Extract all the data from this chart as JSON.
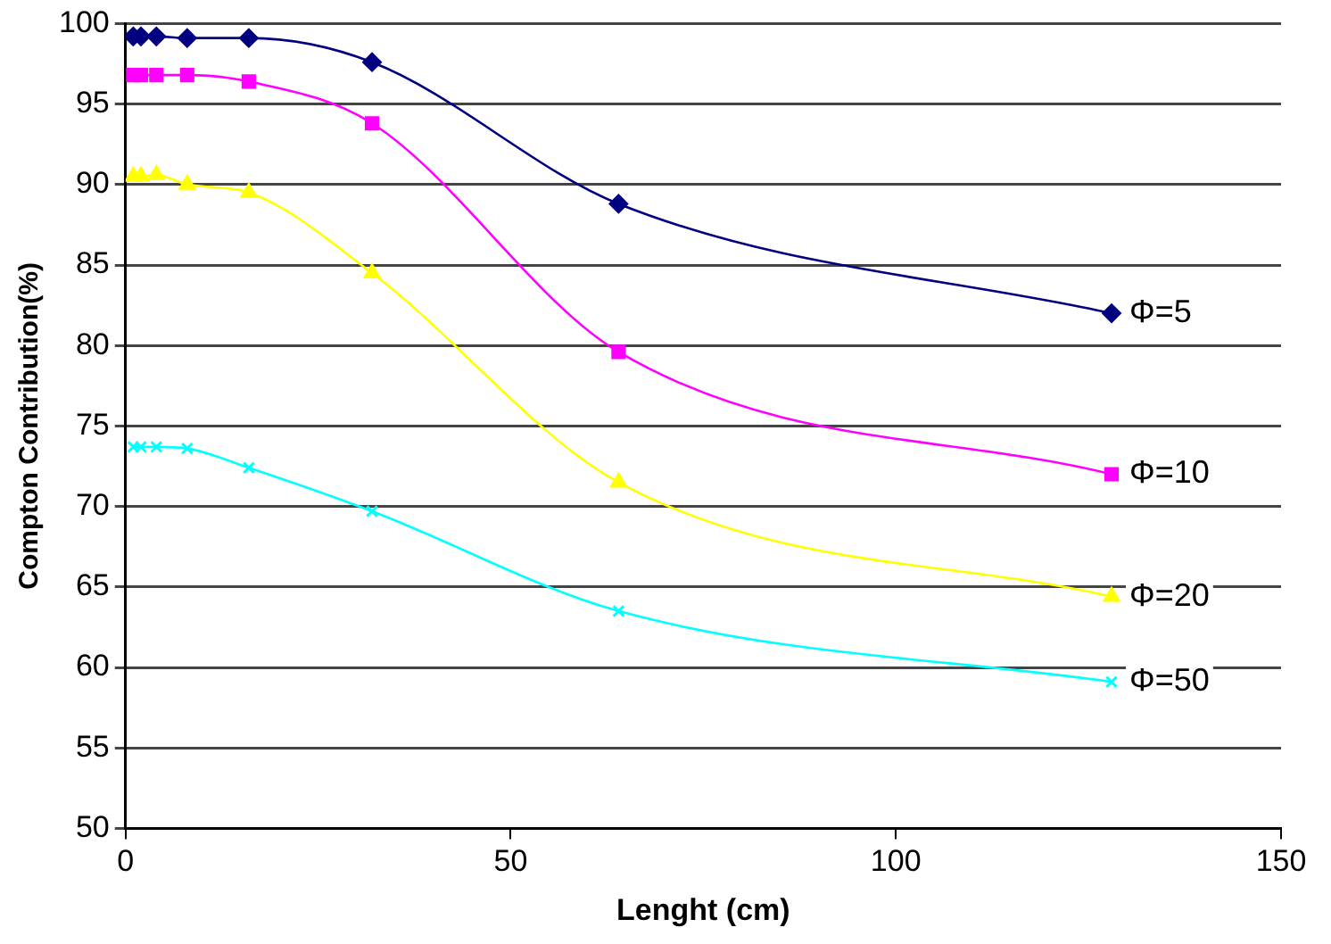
{
  "chart_data": {
    "type": "line",
    "xlabel": "Lenght (cm)",
    "ylabel": "Compton Contribution(%)",
    "x": [
      1,
      2,
      4,
      8,
      16,
      32,
      64,
      128
    ],
    "series": [
      {
        "name": "Φ=5",
        "color": "#000080",
        "marker": "diamond",
        "values": [
          99.2,
          99.2,
          99.2,
          99.1,
          99.1,
          97.6,
          88.8,
          82
        ]
      },
      {
        "name": "Φ=10",
        "color": "#ff00ff",
        "marker": "square",
        "values": [
          96.8,
          96.8,
          96.8,
          96.8,
          96.4,
          93.8,
          79.6,
          72
        ]
      },
      {
        "name": "Φ=20",
        "color": "#ffff00",
        "marker": "triangle",
        "values": [
          90.5,
          90.5,
          90.6,
          90,
          89.5,
          84.5,
          71.5,
          64.4
        ]
      },
      {
        "name": "Φ=50",
        "color": "#00ffff",
        "marker": "cross",
        "values": [
          73.7,
          73.7,
          73.7,
          73.6,
          72.4,
          69.7,
          63.5,
          59.1
        ]
      }
    ],
    "xlim": [
      0,
      150
    ],
    "xticks": [
      0,
      50,
      100,
      150
    ],
    "ylim": [
      50,
      100
    ],
    "yticks": [
      50,
      55,
      60,
      65,
      70,
      75,
      80,
      85,
      90,
      95,
      100
    ],
    "grid": "y",
    "legend": false
  }
}
